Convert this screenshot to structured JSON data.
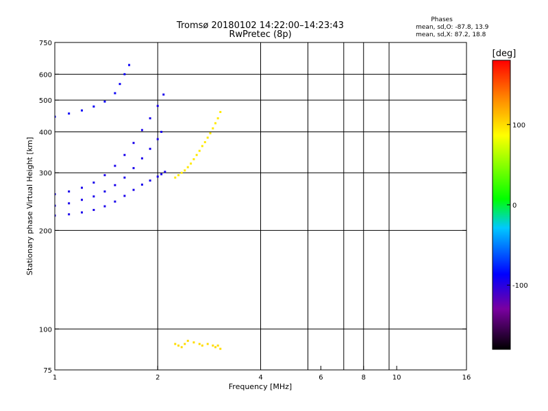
{
  "chart_data": {
    "type": "scatter",
    "title": "Tromsø 20180102 14:22:00–14:23:43",
    "subtitle": "RwPretec (8p)",
    "phase_stats": {
      "heading": "Phases",
      "line_o": "mean, sd,O: -87.8, 13.9",
      "line_x": "mean, sd,X: 87.2, 18.8"
    },
    "xlabel": "Frequency [MHz]",
    "ylabel": "Stationary phase Virtual Height [km]",
    "x_scale": "log",
    "y_scale": "log",
    "xlim": [
      1,
      16
    ],
    "ylim": [
      75,
      750
    ],
    "x_ticks": [
      {
        "value": 1,
        "label": "1"
      },
      {
        "value": 2,
        "label": "2"
      },
      {
        "value": 4,
        "label": "4"
      },
      {
        "value": 6,
        "label": "6"
      },
      {
        "value": 8,
        "label": "8"
      },
      {
        "value": 10,
        "label": "10"
      },
      {
        "value": 16,
        "label": "16"
      }
    ],
    "x_grid": [
      2,
      4,
      5.5,
      7,
      8,
      9.5
    ],
    "y_ticks": [
      {
        "value": 75,
        "label": "75"
      },
      {
        "value": 100,
        "label": "100"
      },
      {
        "value": 200,
        "label": "200"
      },
      {
        "value": 300,
        "label": "300"
      },
      {
        "value": 400,
        "label": "400"
      },
      {
        "value": 500,
        "label": "500"
      },
      {
        "value": 600,
        "label": "600"
      },
      {
        "value": 750,
        "label": "750"
      }
    ],
    "y_grid": [
      100,
      200,
      300,
      400,
      500,
      600
    ],
    "grid": true,
    "colorbar": {
      "label": "[deg]",
      "range": [
        -180,
        180
      ],
      "ticks": [
        {
          "value": 100,
          "label": "100"
        },
        {
          "value": 0,
          "label": "0"
        },
        {
          "value": -100,
          "label": "-100"
        }
      ],
      "colors": [
        "#000000",
        "#7a00a0",
        "#0000ff",
        "#00c8ff",
        "#00ff00",
        "#ffff00",
        "#ff9000",
        "#ff0000"
      ]
    },
    "series": [
      {
        "trace": "o-lower",
        "phase": -95,
        "x": [
          1.0,
          1.1,
          1.2,
          1.3,
          1.4,
          1.5,
          1.6,
          1.7,
          1.8,
          1.9,
          2.0,
          2.05,
          2.1
        ],
        "y": [
          222,
          224,
          227,
          231,
          237,
          245,
          255,
          266,
          276,
          284,
          292,
          297,
          302
        ]
      },
      {
        "trace": "o-band",
        "phase": -95,
        "x": [
          1.0,
          1.1,
          1.2,
          1.3,
          1.4,
          1.5,
          1.6,
          1.7,
          1.8,
          1.9,
          2.0,
          2.05
        ],
        "y": [
          238,
          242,
          248,
          254,
          263,
          275,
          290,
          310,
          332,
          355,
          380,
          400
        ]
      },
      {
        "trace": "o-upper",
        "phase": -95,
        "x": [
          1.0,
          1.1,
          1.2,
          1.3,
          1.4,
          1.5,
          1.6,
          1.7,
          1.8,
          1.9,
          2.0,
          2.08
        ],
        "y": [
          258,
          263,
          270,
          280,
          295,
          315,
          340,
          370,
          405,
          440,
          480,
          520
        ]
      },
      {
        "trace": "o-top",
        "phase": -90,
        "x": [
          1.0,
          1.1,
          1.2,
          1.3,
          1.4,
          1.5,
          1.55,
          1.6,
          1.65
        ],
        "y": [
          445,
          455,
          465,
          478,
          495,
          525,
          560,
          600,
          640
        ]
      },
      {
        "trace": "x-cluster",
        "phase": 95,
        "x": [
          2.25,
          2.3,
          2.35,
          2.4,
          2.45,
          2.5,
          2.55,
          2.6,
          2.65,
          2.7,
          2.75,
          2.8,
          2.85,
          2.9,
          2.95,
          3.0,
          3.05
        ],
        "y": [
          290,
          295,
          300,
          305,
          312,
          320,
          330,
          340,
          350,
          362,
          372,
          384,
          396,
          410,
          425,
          440,
          460
        ]
      },
      {
        "trace": "low-echoes",
        "phase": 100,
        "x": [
          2.25,
          2.3,
          2.35,
          2.4,
          2.45,
          2.55,
          2.65,
          2.7,
          2.8,
          2.9,
          2.95,
          3.0,
          3.05
        ],
        "y": [
          90,
          89,
          88,
          90,
          92,
          91,
          90,
          89,
          90,
          89,
          88,
          89,
          87
        ]
      }
    ]
  }
}
